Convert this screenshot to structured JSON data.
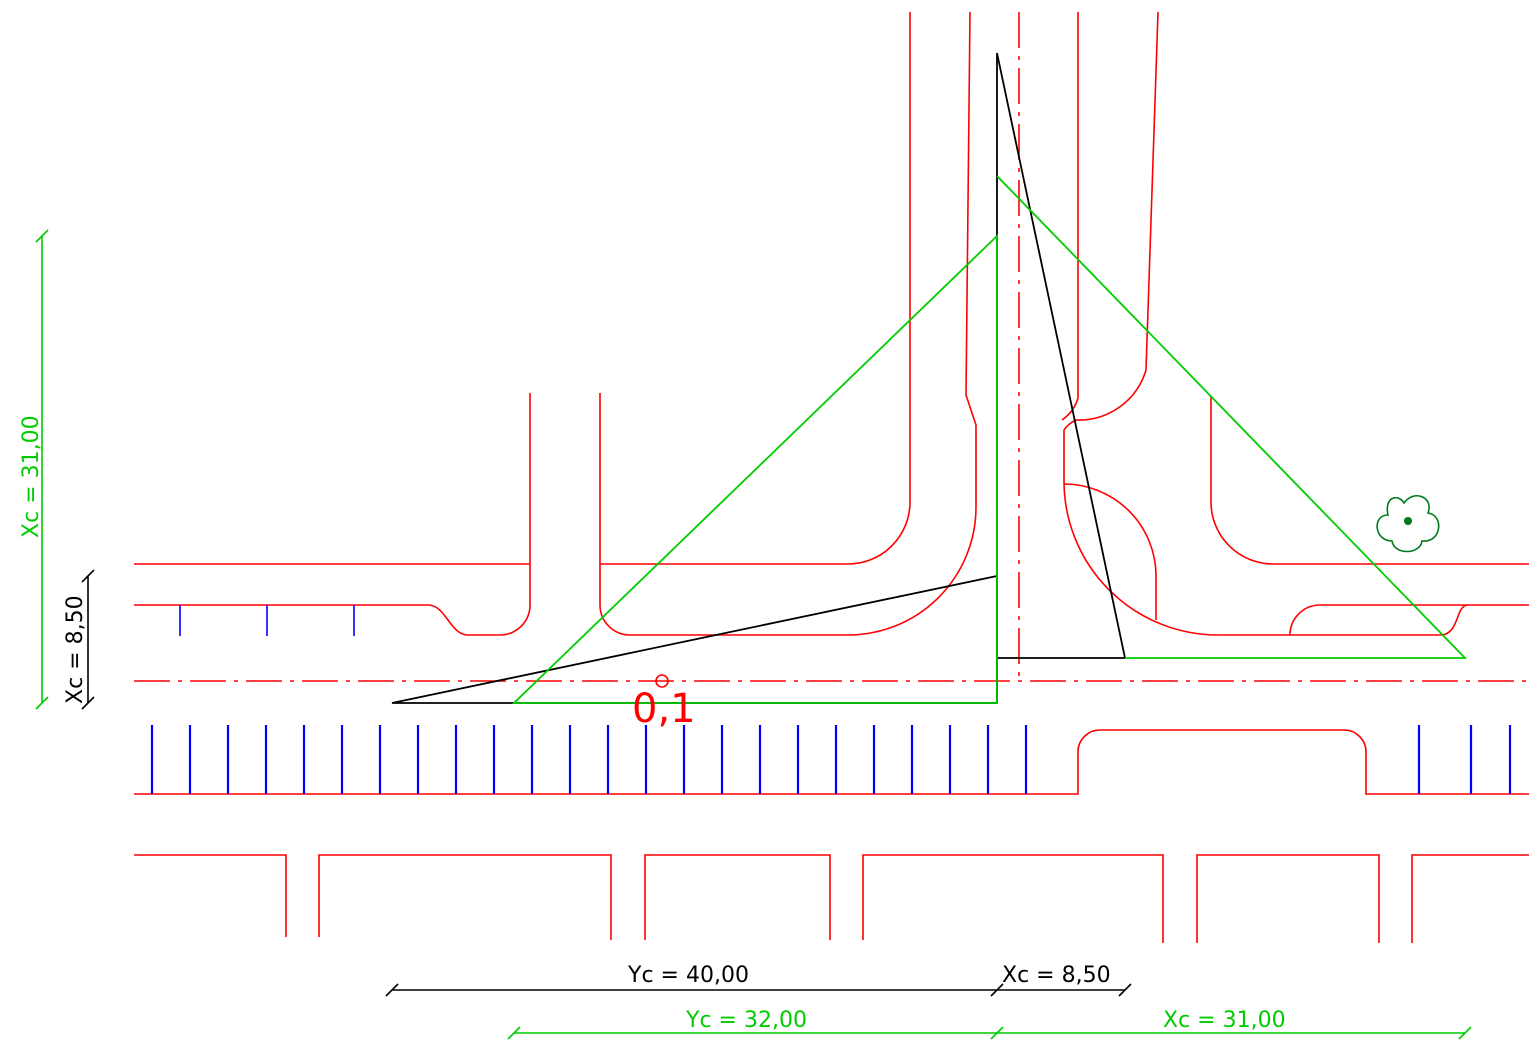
{
  "colors": {
    "road": "#ff0000",
    "parking": "#0000ff",
    "sight_outer": "#000000",
    "sight_inner": "#00cc00",
    "tree": "#007a1f"
  },
  "labels": {
    "point": "0,1"
  },
  "dimensions": {
    "left_green": "Xc  =  31,00",
    "left_black": "Xc  =  8,50",
    "bottom_black_left": "Yc  =  40,00",
    "bottom_black_right": "Xc  =  8,50",
    "bottom_green_left": "Yc  =  32,00",
    "bottom_green_right": "Xc  =  31,00"
  },
  "icons": {
    "tree": "tree-icon"
  }
}
